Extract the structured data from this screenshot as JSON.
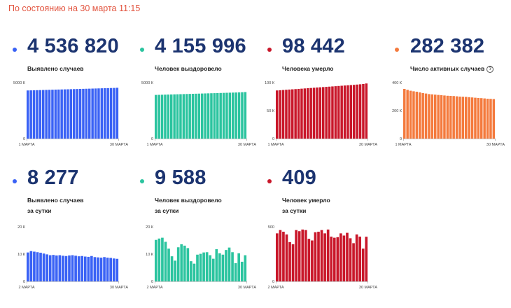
{
  "status_text": "По состоянию на 30 марта 11:15",
  "chart_data": [
    {
      "type": "bar",
      "value_label": "4 536 820",
      "title": "Выявлено случаев",
      "subtitle": "",
      "color": "#3a62f5",
      "ylim": [
        0,
        5000000
      ],
      "yticks": [
        {
          "value": 5000000,
          "label": "5000 К"
        },
        {
          "value": 0,
          "label": "0"
        }
      ],
      "xtick_start": "1 МАРТА",
      "xtick_end": "30 МАРТА",
      "values": [
        4300000,
        4308000,
        4316000,
        4324000,
        4332000,
        4340000,
        4348000,
        4356000,
        4364000,
        4372000,
        4380000,
        4388000,
        4396000,
        4404000,
        4412000,
        4420000,
        4428000,
        4436000,
        4444000,
        4452000,
        4460000,
        4468000,
        4476000,
        4484000,
        4492000,
        4500000,
        4508000,
        4516000,
        4524000,
        4536820
      ]
    },
    {
      "type": "bar",
      "value_label": "4 155 996",
      "title": "Человек выздоровело",
      "subtitle": "",
      "color": "#2bc49f",
      "ylim": [
        0,
        5000000
      ],
      "yticks": [
        {
          "value": 5000000,
          "label": "5000 К"
        },
        {
          "value": 0,
          "label": "0"
        }
      ],
      "xtick_start": "1 МАРТА",
      "xtick_end": "30 МАРТА",
      "values": [
        3900000,
        3908000,
        3916000,
        3925000,
        3933000,
        3941000,
        3950000,
        3958000,
        3966000,
        3975000,
        3983000,
        3991000,
        4000000,
        4008000,
        4016000,
        4025000,
        4033000,
        4041000,
        4050000,
        4058000,
        4066000,
        4075000,
        4083000,
        4091000,
        4100000,
        4108000,
        4116000,
        4125000,
        4140000,
        4155996
      ]
    },
    {
      "type": "bar",
      "value_label": "98 442",
      "title": "Человека умерло",
      "subtitle": "",
      "color": "#c9172a",
      "ylim": [
        0,
        100000
      ],
      "yticks": [
        {
          "value": 100000,
          "label": "100 К"
        },
        {
          "value": 50000,
          "label": "50 К"
        },
        {
          "value": 0,
          "label": "0"
        }
      ],
      "xtick_start": "1 МАРТА",
      "xtick_end": "30 МАРТА",
      "values": [
        86000,
        86400,
        86800,
        87200,
        87600,
        88000,
        88400,
        88800,
        89200,
        89600,
        90000,
        90400,
        90800,
        91200,
        91600,
        92000,
        92400,
        92800,
        93200,
        93600,
        94000,
        94400,
        94800,
        95200,
        95600,
        96000,
        96500,
        97000,
        97500,
        98442
      ]
    },
    {
      "type": "bar",
      "value_label": "282 382",
      "title": "Число активных случаев",
      "subtitle": "",
      "color": "#f47a3d",
      "ylim": [
        0,
        400000
      ],
      "yticks": [
        {
          "value": 400000,
          "label": "400 К"
        },
        {
          "value": 200000,
          "label": "200 К"
        },
        {
          "value": 0,
          "label": "0"
        }
      ],
      "xtick_start": "1 МАРТА",
      "xtick_end": "30 МАРТА",
      "values": [
        355000,
        348000,
        342000,
        338000,
        335000,
        330000,
        325000,
        322000,
        318000,
        316000,
        314000,
        312000,
        310000,
        308000,
        306000,
        305000,
        304000,
        302000,
        300000,
        299000,
        298000,
        296000,
        294000,
        292000,
        290000,
        289000,
        287000,
        285000,
        284000,
        282382
      ]
    },
    {
      "type": "bar",
      "value_label": "8 277",
      "title": "Выявлено случаев",
      "subtitle": "за сутки",
      "color": "#3a62f5",
      "ylim": [
        0,
        20000
      ],
      "yticks": [
        {
          "value": 20000,
          "label": "20 К"
        },
        {
          "value": 10000,
          "label": "10 К"
        },
        {
          "value": 0,
          "label": "0"
        }
      ],
      "xtick_start": "2 МАРТА",
      "xtick_end": "30 МАРТА",
      "values": [
        10600,
        11100,
        10900,
        10700,
        10500,
        10200,
        9900,
        9600,
        9700,
        9500,
        9600,
        9400,
        9300,
        9500,
        9600,
        9400,
        9200,
        9300,
        9100,
        9000,
        9300,
        8900,
        8800,
        8700,
        8900,
        8700,
        8600,
        8400,
        8277
      ]
    },
    {
      "type": "bar",
      "value_label": "9 588",
      "title": "Человек выздоровело",
      "subtitle": "за сутки",
      "color": "#2bc49f",
      "ylim": [
        0,
        20000
      ],
      "yticks": [
        {
          "value": 20000,
          "label": "20 К"
        },
        {
          "value": 10000,
          "label": "10 К"
        },
        {
          "value": 0,
          "label": "0"
        }
      ],
      "xtick_start": "2 МАРТА",
      "xtick_end": "30 МАРТА",
      "values": [
        15200,
        15700,
        16000,
        14500,
        12000,
        9200,
        7600,
        12500,
        13600,
        13100,
        12200,
        7400,
        6500,
        9800,
        10100,
        10600,
        10700,
        9600,
        8300,
        11800,
        10300,
        9800,
        11500,
        12400,
        10700,
        6700,
        10300,
        7200,
        9588
      ]
    },
    {
      "type": "bar",
      "value_label": "409",
      "title": "Человек умерло",
      "subtitle": "за сутки",
      "color": "#c9172a",
      "ylim": [
        0,
        500
      ],
      "yticks": [
        {
          "value": 500,
          "label": "500"
        },
        {
          "value": 0,
          "label": "0"
        }
      ],
      "xtick_start": "2 МАРТА",
      "xtick_end": "30 МАРТА",
      "values": [
        440,
        470,
        455,
        430,
        360,
        340,
        470,
        460,
        475,
        470,
        390,
        375,
        450,
        455,
        470,
        440,
        475,
        410,
        400,
        405,
        440,
        420,
        445,
        395,
        350,
        430,
        410,
        300,
        409
      ]
    }
  ]
}
